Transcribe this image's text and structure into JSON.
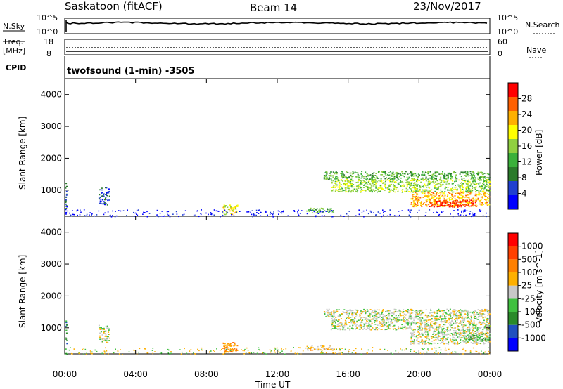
{
  "header": {
    "station": "Saskatoon (fitACF)",
    "beam": "Beam 14",
    "date": "23/Nov/2017"
  },
  "side_labels": {
    "nsky": "N.Sky",
    "freq": "Freq.",
    "mhz": "[MHz]",
    "cpid": "CPID",
    "nsearch": "N.Search",
    "nave": "Nave",
    "left_top_ticks": [
      "10^5",
      "10^0"
    ],
    "right_top_ticks": [
      "10^5",
      "10^0"
    ],
    "freq_ticks": [
      "18",
      "8"
    ],
    "nave_ticks": [
      "60",
      "0"
    ]
  },
  "program": "twofsound (1-min) -3505",
  "chart_data": [
    {
      "type": "heatmap",
      "name": "power-panel",
      "ylabel": "Slant Range [km]",
      "xlabel": "",
      "x_ticks": [
        "00:00",
        "04:00",
        "08:00",
        "12:00",
        "16:00",
        "20:00",
        "00:00"
      ],
      "xlim_hours": [
        0,
        24
      ],
      "ylim": [
        180,
        4500
      ],
      "y_ticks": [
        1000,
        2000,
        3000,
        4000
      ],
      "colorbar": {
        "label": "Power [dB]",
        "ticks": [
          "28",
          "24",
          "20",
          "16",
          "12",
          "8",
          "4"
        ],
        "colors": [
          "#0000ff",
          "#2040d0",
          "#2a7a2a",
          "#3ab03a",
          "#90d040",
          "#ffff00",
          "#ffb000",
          "#ff6000",
          "#ff0000"
        ]
      },
      "regions": [
        {
          "t0": 0.0,
          "t1": 0.1,
          "r0": 180,
          "r1": 1250,
          "level": 1
        },
        {
          "t0": 1.9,
          "t1": 2.5,
          "r0": 550,
          "r1": 1100,
          "level": 1
        },
        {
          "t0": 8.9,
          "t1": 9.8,
          "r0": 250,
          "r1": 560,
          "level": 5
        },
        {
          "t0": 13.6,
          "t1": 15.2,
          "r0": 300,
          "r1": 450,
          "level": 3
        },
        {
          "t0": 14.6,
          "t1": 24.0,
          "r0": 1350,
          "r1": 1600,
          "level": 3
        },
        {
          "t0": 15.0,
          "t1": 24.0,
          "r0": 950,
          "r1": 1350,
          "level": 4
        },
        {
          "t0": 19.5,
          "t1": 24.0,
          "r0": 500,
          "r1": 950,
          "level": 6
        },
        {
          "t0": 20.5,
          "t1": 23.2,
          "r0": 480,
          "r1": 700,
          "level": 8
        }
      ]
    },
    {
      "type": "heatmap",
      "name": "velocity-panel",
      "ylabel": "Slant Range [km]",
      "xlabel": "Time UT",
      "x_ticks": [
        "00:00",
        "04:00",
        "08:00",
        "12:00",
        "16:00",
        "20:00",
        "00:00"
      ],
      "xlim_hours": [
        0,
        24
      ],
      "ylim": [
        180,
        4500
      ],
      "y_ticks": [
        1000,
        2000,
        3000,
        4000
      ],
      "colorbar": {
        "label": "Velocity [m s^-1]",
        "ticks": [
          "1000",
          "500",
          "100",
          "25",
          "-25",
          "-100",
          "-500",
          "-1000"
        ],
        "colors": [
          "#0000ff",
          "#2050c0",
          "#2a8a2a",
          "#40c040",
          "#c8c8c8",
          "#ffb000",
          "#ff8000",
          "#ff4000",
          "#ff0000"
        ]
      },
      "regions": [
        {
          "t0": 0.0,
          "t1": 0.1,
          "r0": 180,
          "r1": 1250,
          "level": 2
        },
        {
          "t0": 1.9,
          "t1": 2.5,
          "r0": 550,
          "r1": 1100,
          "level": 4
        },
        {
          "t0": 8.9,
          "t1": 9.8,
          "r0": 250,
          "r1": 560,
          "level": 6
        },
        {
          "t0": 13.6,
          "t1": 15.2,
          "r0": 300,
          "r1": 450,
          "level": 5
        },
        {
          "t0": 14.6,
          "t1": 24.0,
          "r0": 1350,
          "r1": 1600,
          "level": 4
        },
        {
          "t0": 15.0,
          "t1": 24.0,
          "r0": 950,
          "r1": 1350,
          "level": 4
        },
        {
          "t0": 19.5,
          "t1": 24.0,
          "r0": 500,
          "r1": 950,
          "level": 4
        },
        {
          "t0": 22.5,
          "t1": 24.0,
          "r0": 600,
          "r1": 850,
          "level": 3
        }
      ]
    }
  ]
}
